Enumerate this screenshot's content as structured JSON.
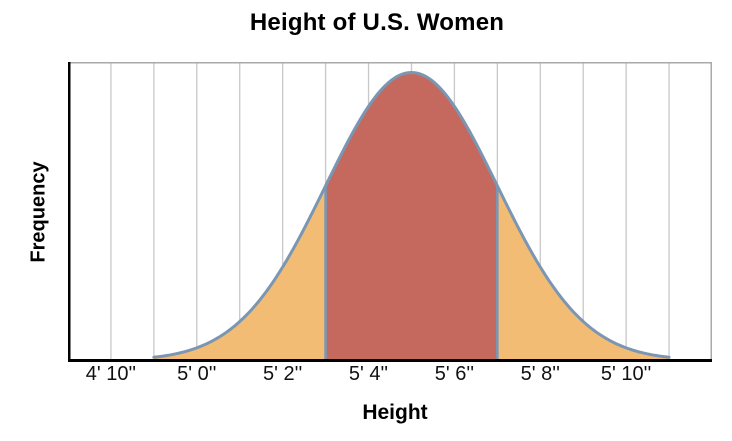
{
  "chart_data": {
    "type": "area",
    "curve_shape": "normal-distribution-bell-curve",
    "title": "Height of U.S. Women",
    "xlabel": "Height",
    "ylabel": "Frequency",
    "grid": "vertical-gridlines-only",
    "y_ticks": [],
    "x_unit": "feet-and-inches",
    "x_domain_inches": [
      57,
      72
    ],
    "x_gridline_step_inches": 1,
    "x_ticks": [
      {
        "inches": 58,
        "label": "4' 10''"
      },
      {
        "inches": 60,
        "label": "5' 0''"
      },
      {
        "inches": 62,
        "label": "5' 2''"
      },
      {
        "inches": 64,
        "label": "5' 4''"
      },
      {
        "inches": 66,
        "label": "5' 6''"
      },
      {
        "inches": 68,
        "label": "5' 8''"
      },
      {
        "inches": 70,
        "label": "5' 10''"
      }
    ],
    "distribution": {
      "mean_inches": 65,
      "mean_label": "5' 5''",
      "std_dev_inches": 2,
      "curve_span_inches": [
        59,
        71
      ]
    },
    "regions": [
      {
        "name": "left-tail",
        "from_inches": 59,
        "to_inches": 63,
        "fill": "#f3bc74"
      },
      {
        "name": "center-within-one-sd",
        "from_inches": 63,
        "to_inches": 67,
        "fill": "#c5695e"
      },
      {
        "name": "right-tail",
        "from_inches": 67,
        "to_inches": 71,
        "fill": "#f3bc74"
      }
    ],
    "colors": {
      "curve_stroke": "#7b96b3",
      "gridline": "#c8c8c8",
      "plot_border_light": "#a9a9a9",
      "axis_line": "#000000",
      "text": "#000000",
      "background": "#ffffff"
    }
  }
}
